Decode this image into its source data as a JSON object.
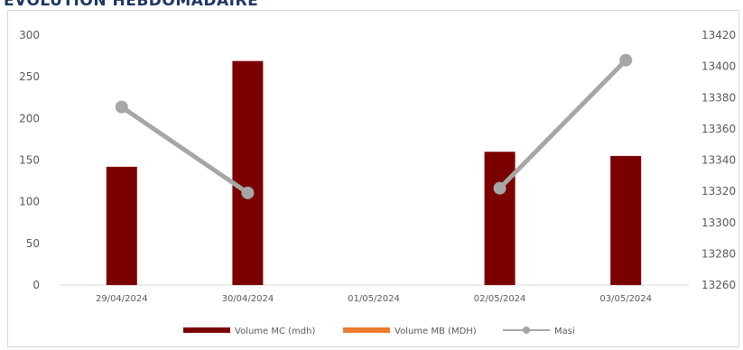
{
  "header": {
    "title": "EVOLUTION HEBDOMADAIRE"
  },
  "chart_data": {
    "type": "bar",
    "categories": [
      "29/04/2024",
      "30/04/2024",
      "01/05/2024",
      "02/05/2024",
      "03/05/2024"
    ],
    "series": [
      {
        "name": "Volume MC (mdh)",
        "type": "bar",
        "axis": "left",
        "color": "#7b0000",
        "values": [
          142,
          269,
          null,
          160,
          155
        ]
      },
      {
        "name": "Volume MB (MDH)",
        "type": "bar",
        "axis": "left",
        "color": "#ed7d31",
        "values": [
          null,
          null,
          null,
          null,
          null
        ]
      },
      {
        "name": "Masi",
        "type": "line",
        "axis": "right",
        "color": "#a6a6a6",
        "values": [
          13374,
          13319,
          null,
          13322,
          13404
        ]
      }
    ],
    "ylim": [
      0,
      300
    ],
    "yticks": [
      0,
      50,
      100,
      150,
      200,
      250,
      300
    ],
    "y2lim": [
      13260,
      13420
    ],
    "y2ticks": [
      13260,
      13280,
      13300,
      13320,
      13340,
      13360,
      13380,
      13400,
      13420
    ],
    "grid": false,
    "legend_position": "bottom"
  }
}
